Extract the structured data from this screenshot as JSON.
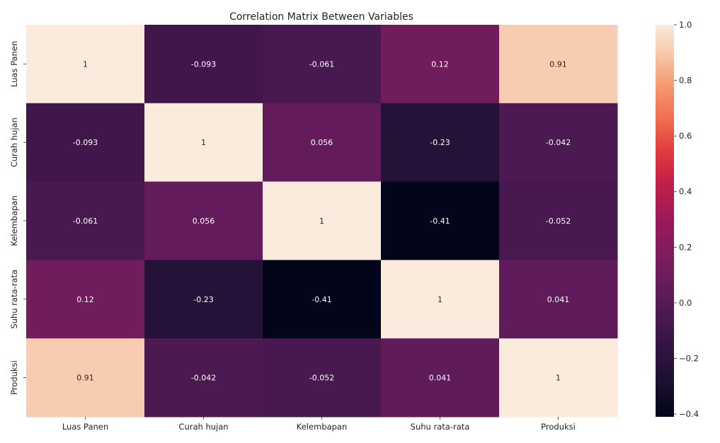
{
  "chart_data": {
    "type": "heatmap",
    "title": "Correlation Matrix Between Variables",
    "x_labels": [
      "Luas Panen",
      "Curah hujan",
      "Kelembapan",
      "Suhu rata-rata",
      "Produksi"
    ],
    "y_labels": [
      "Luas Panen",
      "Curah hujan",
      "Kelembapan",
      "Suhu rata-rata",
      "Produksi"
    ],
    "matrix": [
      [
        1,
        -0.093,
        -0.061,
        0.12,
        0.91
      ],
      [
        -0.093,
        1,
        0.056,
        -0.23,
        -0.042
      ],
      [
        -0.061,
        0.056,
        1,
        -0.41,
        -0.052
      ],
      [
        0.12,
        -0.23,
        -0.41,
        1,
        0.041
      ],
      [
        0.91,
        -0.042,
        -0.052,
        0.041,
        1
      ]
    ],
    "cell_labels": [
      [
        "1",
        "-0.093",
        "-0.061",
        "0.12",
        "0.91"
      ],
      [
        "-0.093",
        "1",
        "0.056",
        "-0.23",
        "-0.042"
      ],
      [
        "-0.061",
        "0.056",
        "1",
        "-0.41",
        "-0.052"
      ],
      [
        "0.12",
        "-0.23",
        "-0.41",
        "1",
        "0.041"
      ],
      [
        "0.91",
        "-0.042",
        "-0.052",
        "0.041",
        "1"
      ]
    ],
    "colorscale": "rocket",
    "colorbar": {
      "min": -0.41,
      "max": 1.0,
      "ticks": [
        1.0,
        0.8,
        0.6,
        0.4,
        0.2,
        0.0,
        -0.2,
        -0.4
      ],
      "tick_labels": [
        "1.0",
        "0.8",
        "0.6",
        "0.4",
        "0.2",
        "0.0",
        "−0.2",
        "−0.4"
      ]
    },
    "grid": false
  }
}
